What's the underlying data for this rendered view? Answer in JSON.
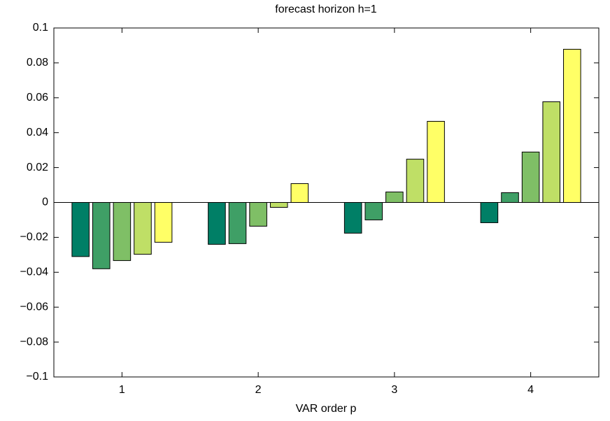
{
  "chart_data": {
    "type": "bar",
    "title": "forecast horizon h=1",
    "xlabel": "VAR order p",
    "x": [
      1,
      2,
      3,
      4
    ],
    "series": [
      {
        "color": "#007f66",
        "values": [
          -0.031,
          -0.024,
          -0.0176,
          -0.0116
        ]
      },
      {
        "color": "#3f9f66",
        "values": [
          -0.038,
          -0.0236,
          -0.01,
          0.0056
        ]
      },
      {
        "color": "#7fbf66",
        "values": [
          -0.0333,
          -0.0136,
          0.006,
          0.0289
        ]
      },
      {
        "color": "#bfdf66",
        "values": [
          -0.0297,
          -0.0028,
          0.0248,
          0.0577
        ]
      },
      {
        "color": "#ffff66",
        "values": [
          -0.0228,
          0.0108,
          0.0465,
          0.0878
        ]
      }
    ],
    "xlim": [
      0.5,
      4.5
    ],
    "xticks": [
      1,
      2,
      3,
      4
    ],
    "ylim": [
      -0.1,
      0.1
    ],
    "yticks": [
      {
        "value": -0.1,
        "label": "−0.1"
      },
      {
        "value": -0.08,
        "label": "−0.08"
      },
      {
        "value": -0.06,
        "label": "−0.06"
      },
      {
        "value": -0.04,
        "label": "−0.04"
      },
      {
        "value": -0.02,
        "label": "−0.02"
      },
      0,
      0.02,
      0.04,
      0.06,
      0.08,
      0.1
    ]
  }
}
